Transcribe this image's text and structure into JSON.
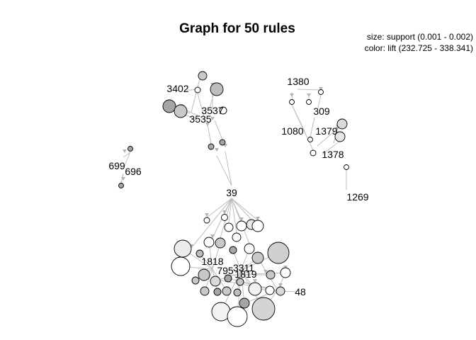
{
  "title": "Graph for 50 rules",
  "legend": {
    "size_text": "size: support (0.001 - 0.002)",
    "color_text": "color: lift (232.725 - 338.341)"
  },
  "item_labels": [
    "3402",
    "3537",
    "3535",
    "1380",
    "309",
    "1080",
    "1379",
    "1378",
    "1269",
    "699",
    "696",
    "39",
    "1818",
    "795",
    "3311",
    "1819",
    "48"
  ]
}
